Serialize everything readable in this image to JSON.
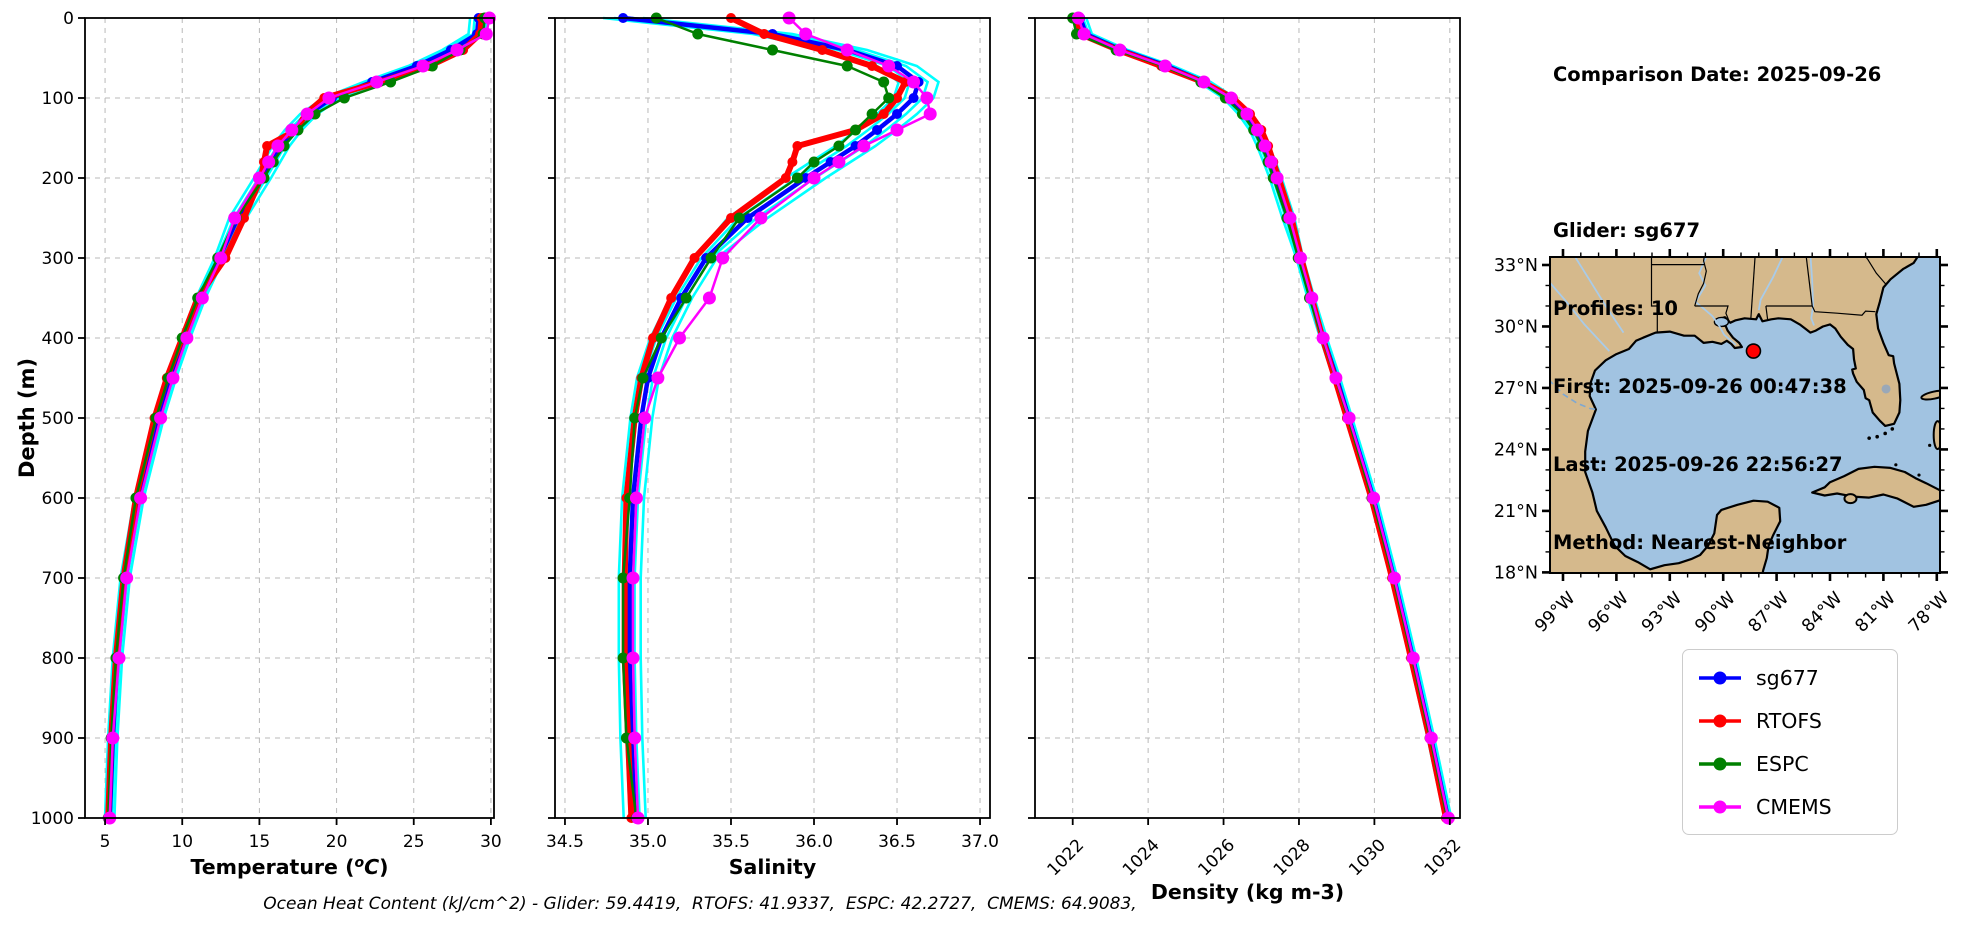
{
  "info": {
    "lines": [
      "Comparison Date: 2025-09-26",
      "Glider: sg677",
      "Profiles: 10",
      "First: 2025-09-26 00:47:38",
      "Last: 2025-09-26 22:56:27",
      "Method: Nearest-Neighbor"
    ]
  },
  "footer": "Ocean Heat Content (kJ/cm^2) - Glider: 59.4419,  RTOFS: 41.9337,  ESPC: 42.2727,  CMEMS: 64.9083,",
  "legend": {
    "items": [
      {
        "label": "sg677",
        "color": "#0000ff"
      },
      {
        "label": "RTOFS",
        "color": "#ff0000"
      },
      {
        "label": "ESPC",
        "color": "#008000"
      },
      {
        "label": "CMEMS",
        "color": "#ff00ff"
      }
    ]
  },
  "chart_data": [
    {
      "type": "line",
      "id": "temperature",
      "xlabel": "Temperature (°C)",
      "ylabel": "Depth (m)",
      "xlim": [
        3.7,
        30.2
      ],
      "ylim": [
        1000,
        0
      ],
      "grid": true,
      "xticks": [
        5,
        10,
        15,
        20,
        25,
        30
      ],
      "yticks": [
        0,
        100,
        200,
        300,
        400,
        500,
        600,
        700,
        800,
        900,
        1000
      ],
      "rotate_xticklabels": false,
      "depths": [
        0,
        20,
        40,
        60,
        80,
        100,
        120,
        140,
        160,
        180,
        200,
        250,
        300,
        350,
        400,
        450,
        500,
        600,
        700,
        800,
        900,
        1000
      ],
      "glider_profile_color": "#00ffff",
      "glider_profile_spread": 0.55,
      "series": [
        {
          "name": "sg677",
          "color": "#0000ff",
          "values": [
            29.2,
            29.1,
            27.4,
            25.2,
            22.3,
            19.7,
            18.2,
            17.2,
            16.4,
            15.8,
            15.2,
            13.6,
            12.4,
            11.2,
            10.2,
            9.3,
            8.5,
            7.2,
            6.3,
            5.8,
            5.5,
            5.3
          ]
        },
        {
          "name": "RTOFS",
          "color": "#ff0000",
          "values": [
            29.4,
            29.3,
            28.2,
            26.0,
            22.8,
            19.2,
            18.0,
            17.4,
            15.5,
            15.3,
            15.1,
            14.0,
            12.8,
            11.0,
            10.0,
            9.0,
            8.2,
            7.0,
            6.2,
            5.7,
            5.4,
            5.2
          ]
        },
        {
          "name": "ESPC",
          "color": "#008000",
          "values": [
            29.6,
            29.5,
            28.0,
            26.2,
            23.5,
            20.5,
            18.6,
            17.5,
            16.6,
            15.9,
            15.3,
            13.5,
            12.3,
            11.0,
            10.0,
            9.1,
            8.3,
            7.0,
            6.2,
            5.7,
            5.4,
            5.2
          ]
        },
        {
          "name": "CMEMS",
          "color": "#ff00ff",
          "values": [
            29.9,
            29.7,
            27.8,
            25.6,
            22.6,
            19.5,
            18.1,
            17.1,
            16.2,
            15.6,
            15.0,
            13.4,
            12.5,
            11.3,
            10.3,
            9.4,
            8.6,
            7.3,
            6.4,
            5.9,
            5.5,
            5.3
          ]
        }
      ]
    },
    {
      "type": "line",
      "id": "salinity",
      "xlabel": "Salinity",
      "ylabel": "Depth (m)",
      "xlim": [
        34.44,
        37.06
      ],
      "ylim": [
        1000,
        0
      ],
      "grid": true,
      "xticks": [
        34.5,
        35.0,
        35.5,
        36.0,
        36.5,
        37.0
      ],
      "yticks": [
        0,
        100,
        200,
        300,
        400,
        500,
        600,
        700,
        800,
        900,
        1000
      ],
      "rotate_xticklabels": false,
      "depths": [
        0,
        20,
        40,
        60,
        80,
        100,
        120,
        140,
        160,
        180,
        200,
        250,
        300,
        350,
        400,
        450,
        500,
        600,
        700,
        800,
        900,
        1000
      ],
      "glider_profile_color": "#00ffff",
      "glider_profile_spread": 0.12,
      "series": [
        {
          "name": "sg677",
          "color": "#0000ff",
          "values": [
            34.85,
            35.75,
            36.2,
            36.5,
            36.63,
            36.6,
            36.5,
            36.38,
            36.25,
            36.1,
            35.95,
            35.6,
            35.35,
            35.2,
            35.08,
            35.0,
            34.96,
            34.91,
            34.89,
            34.89,
            34.9,
            34.92
          ]
        },
        {
          "name": "RTOFS",
          "color": "#ff0000",
          "values": [
            35.5,
            35.7,
            36.05,
            36.35,
            36.55,
            36.5,
            36.42,
            36.25,
            35.9,
            35.87,
            35.83,
            35.5,
            35.28,
            35.14,
            35.03,
            34.96,
            34.92,
            34.87,
            34.86,
            34.86,
            34.88,
            34.9
          ]
        },
        {
          "name": "ESPC",
          "color": "#008000",
          "values": [
            35.05,
            35.3,
            35.75,
            36.2,
            36.42,
            36.45,
            36.35,
            36.25,
            36.15,
            36.0,
            35.9,
            35.55,
            35.38,
            35.23,
            35.08,
            34.97,
            34.92,
            34.89,
            34.85,
            34.85,
            34.87,
            34.93
          ]
        },
        {
          "name": "CMEMS",
          "color": "#ff00ff",
          "values": [
            35.85,
            35.95,
            36.2,
            36.45,
            36.6,
            36.68,
            36.7,
            36.5,
            36.3,
            36.15,
            36.0,
            35.68,
            35.45,
            35.37,
            35.19,
            35.06,
            34.98,
            34.93,
            34.91,
            34.91,
            34.92,
            34.94
          ]
        }
      ]
    },
    {
      "type": "line",
      "id": "density",
      "xlabel": "Density (kg m-3)",
      "ylabel": "Depth (m)",
      "xlim": [
        1021.0,
        1032.27
      ],
      "ylim": [
        1000,
        0
      ],
      "grid": true,
      "xticks": [
        1022,
        1024,
        1026,
        1028,
        1030,
        1032
      ],
      "yticks": [
        0,
        100,
        200,
        300,
        400,
        500,
        600,
        700,
        800,
        900,
        1000
      ],
      "rotate_xticklabels": true,
      "depths": [
        0,
        20,
        40,
        60,
        80,
        100,
        120,
        140,
        160,
        180,
        200,
        250,
        300,
        350,
        400,
        450,
        500,
        600,
        700,
        800,
        900,
        1000
      ],
      "glider_profile_color": "#00ffff",
      "glider_profile_spread": 0.16,
      "series": [
        {
          "name": "sg677",
          "color": "#0000ff",
          "values": [
            1022.2,
            1022.35,
            1023.3,
            1024.5,
            1025.5,
            1026.15,
            1026.55,
            1026.85,
            1027.05,
            1027.22,
            1027.38,
            1027.72,
            1028.02,
            1028.32,
            1028.65,
            1029.0,
            1029.32,
            1029.97,
            1030.52,
            1031.02,
            1031.5,
            1031.95
          ]
        },
        {
          "name": "RTOFS",
          "color": "#ff0000",
          "values": [
            1022.05,
            1022.2,
            1023.2,
            1024.35,
            1025.45,
            1026.25,
            1026.7,
            1027.0,
            1027.18,
            1027.32,
            1027.46,
            1027.8,
            1028.06,
            1028.34,
            1028.62,
            1028.95,
            1029.27,
            1029.92,
            1030.47,
            1030.97,
            1031.46,
            1031.9
          ]
        },
        {
          "name": "ESPC",
          "color": "#008000",
          "values": [
            1022.0,
            1022.1,
            1023.15,
            1024.4,
            1025.4,
            1026.05,
            1026.5,
            1026.8,
            1027.0,
            1027.18,
            1027.32,
            1027.68,
            1027.98,
            1028.28,
            1028.62,
            1028.97,
            1029.3,
            1029.94,
            1030.5,
            1031.0,
            1031.48,
            1031.93
          ]
        },
        {
          "name": "CMEMS",
          "color": "#ff00ff",
          "values": [
            1022.15,
            1022.3,
            1023.25,
            1024.45,
            1025.48,
            1026.2,
            1026.62,
            1026.9,
            1027.1,
            1027.26,
            1027.42,
            1027.76,
            1028.04,
            1028.34,
            1028.64,
            1028.98,
            1029.33,
            1029.98,
            1030.53,
            1031.03,
            1031.51,
            1031.96
          ]
        }
      ]
    }
  ],
  "map": {
    "lat_tick_values": [
      33,
      30,
      27,
      24,
      21,
      18
    ],
    "lat_tick_labels": [
      "33°N",
      "30°N",
      "27°N",
      "24°N",
      "21°N",
      "18°N"
    ],
    "lon_tick_values": [
      -99,
      -96,
      -93,
      -90,
      -87,
      -84,
      -81,
      -78
    ],
    "lon_tick_labels": [
      "99°W",
      "96°W",
      "93°W",
      "90°W",
      "87°W",
      "84°W",
      "81°W",
      "78°W"
    ],
    "extent": {
      "lon_min": -99.73,
      "lon_max": -77.82,
      "lat_min": 17.97,
      "lat_max": 33.39
    },
    "marker": {
      "lon": -88.3,
      "lat": 28.8,
      "color": "#ff0000"
    },
    "land_color": "#d5b98c",
    "ocean_color": "#a1c3e1",
    "river_color": "#a9cbe8"
  }
}
